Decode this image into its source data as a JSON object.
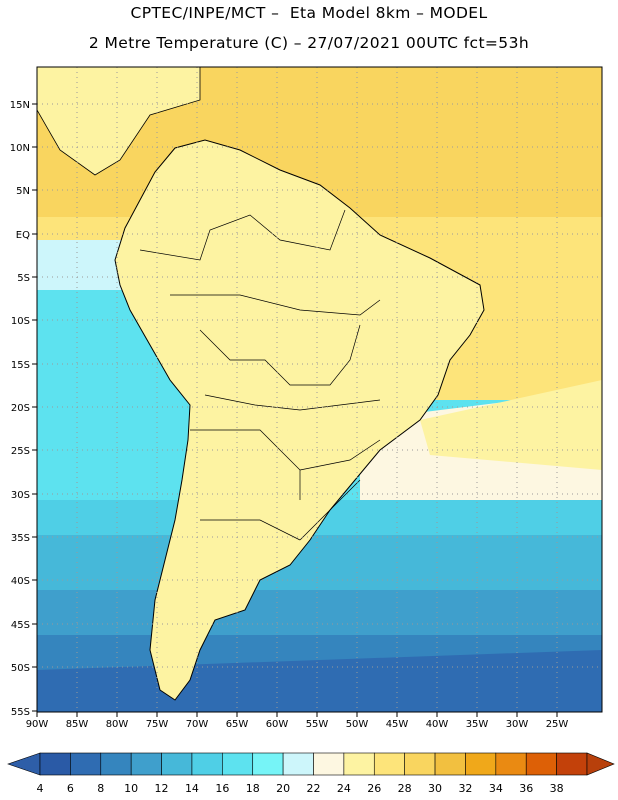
{
  "header": {
    "line1": "CPTEC/INPE/MCT –  Eta Model 8km – MODEL",
    "line2": "2 Metre Temperature (C) – 27/07/2021 00UTC fct=53h"
  },
  "map": {
    "lon_labels": [
      "90W",
      "85W",
      "80W",
      "75W",
      "70W",
      "65W",
      "60W",
      "55W",
      "50W",
      "45W",
      "40W",
      "35W",
      "30W",
      "25W"
    ],
    "lat_labels": [
      "15N",
      "10N",
      "5N",
      "EQ",
      "5S",
      "10S",
      "15S",
      "20S",
      "25S",
      "30S",
      "35S",
      "40S",
      "45S",
      "50S",
      "55S"
    ],
    "grid": "dotted"
  },
  "colorbar": {
    "labels": [
      "4",
      "6",
      "8",
      "10",
      "12",
      "14",
      "16",
      "18",
      "20",
      "22",
      "24",
      "26",
      "28",
      "30",
      "32",
      "34",
      "36",
      "38"
    ],
    "colors": [
      "#2a5aa6",
      "#2f6cb2",
      "#3585be",
      "#3f9fcc",
      "#46b8d9",
      "#4fcfe6",
      "#5de2ef",
      "#76f4f7",
      "#cdf6fb",
      "#fdf7e1",
      "#fdf3a2",
      "#fde47a",
      "#f9d55f",
      "#f2c040",
      "#f0a81a",
      "#ea8a12",
      "#dd6006",
      "#c3410a"
    ],
    "under_color": "#2e5ea8",
    "over_color": "#b8400b"
  }
}
